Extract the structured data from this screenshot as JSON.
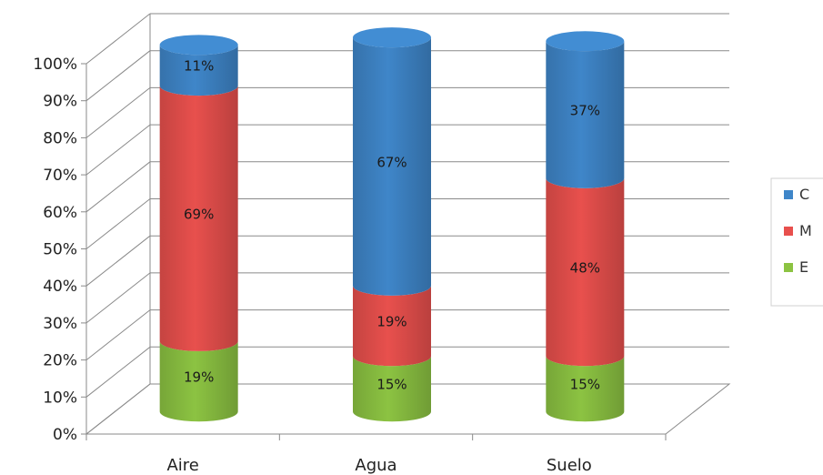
{
  "chart_data": {
    "type": "bar",
    "stacked": true,
    "percent_stacked": true,
    "style": "3d-cylinder",
    "categories": [
      "Aire",
      "Agua",
      "Suelo"
    ],
    "series": [
      {
        "name": "E",
        "values": [
          19,
          15,
          15
        ],
        "labels": [
          "19%",
          "15%",
          "15%"
        ],
        "color": "#8cc342"
      },
      {
        "name": "M",
        "values": [
          69,
          19,
          48
        ],
        "labels": [
          "69%",
          "19%",
          "48%"
        ],
        "color": "#e8504d"
      },
      {
        "name": "C",
        "values": [
          11,
          67,
          37
        ],
        "labels": [
          "11%",
          "67%",
          "37%"
        ],
        "color": "#3f86c9"
      }
    ],
    "yticks": [
      "0%",
      "10%",
      "20%",
      "30%",
      "40%",
      "50%",
      "60%",
      "70%",
      "80%",
      "90%",
      "100%"
    ],
    "ylim": [
      0,
      100
    ],
    "grid": true,
    "legend": {
      "position": "right",
      "order": [
        "C",
        "M",
        "E"
      ]
    },
    "title": "",
    "xlabel": "",
    "ylabel": ""
  }
}
